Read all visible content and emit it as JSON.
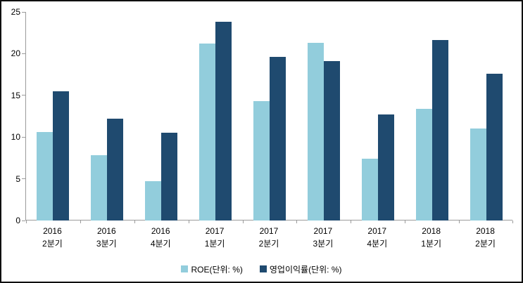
{
  "chart_data": {
    "type": "bar",
    "title": "",
    "xlabel": "",
    "ylabel": "",
    "categories": [
      "2016 2분기",
      "2016 3분기",
      "2016 4분기",
      "2017 1분기",
      "2017 2분기",
      "2017 3분기",
      "2017 4분기",
      "2018 1분기",
      "2018 2분기"
    ],
    "series": [
      {
        "id": "roe",
        "name": "ROE(단위: %)",
        "color": "#92CDDC",
        "values": [
          10.6,
          7.8,
          4.7,
          21.2,
          14.3,
          21.3,
          7.4,
          13.4,
          11.0
        ]
      },
      {
        "id": "operating-margin",
        "name": "영업이익률(단위: %)",
        "color": "#1F4A6F",
        "values": [
          15.5,
          12.2,
          10.5,
          23.8,
          19.6,
          19.1,
          12.7,
          21.6,
          17.6
        ]
      }
    ],
    "ylim": [
      0,
      25
    ],
    "yticks": [
      0,
      5,
      10,
      15,
      20,
      25
    ],
    "grid": false,
    "legend_position": "bottom"
  },
  "colors": {
    "axis": "#9b9b9b",
    "text": "#000000",
    "background": "#ffffff",
    "border": "#0f0f0f",
    "roe_bar": "#92CDDC",
    "operating_margin_bar": "#1F4A6F"
  }
}
